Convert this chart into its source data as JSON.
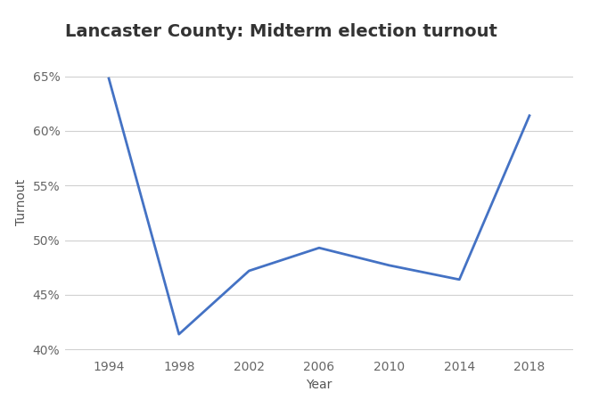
{
  "title": "Lancaster County: Midterm election turnout",
  "xlabel": "Year",
  "ylabel": "Turnout",
  "years": [
    1994,
    1998,
    2002,
    2006,
    2010,
    2014,
    2018
  ],
  "turnout": [
    0.648,
    0.414,
    0.472,
    0.493,
    0.477,
    0.464,
    0.614
  ],
  "line_color": "#4472C4",
  "line_width": 2.0,
  "background_color": "#ffffff",
  "grid_color": "#d0d0d0",
  "title_color": "#333333",
  "tick_color": "#666666",
  "label_color": "#555555",
  "ylim": [
    0.395,
    0.675
  ],
  "yticks": [
    0.4,
    0.45,
    0.5,
    0.55,
    0.6,
    0.65
  ],
  "xticks": [
    1994,
    1998,
    2002,
    2006,
    2010,
    2014,
    2018
  ],
  "title_fontsize": 14,
  "label_fontsize": 10,
  "tick_fontsize": 10
}
